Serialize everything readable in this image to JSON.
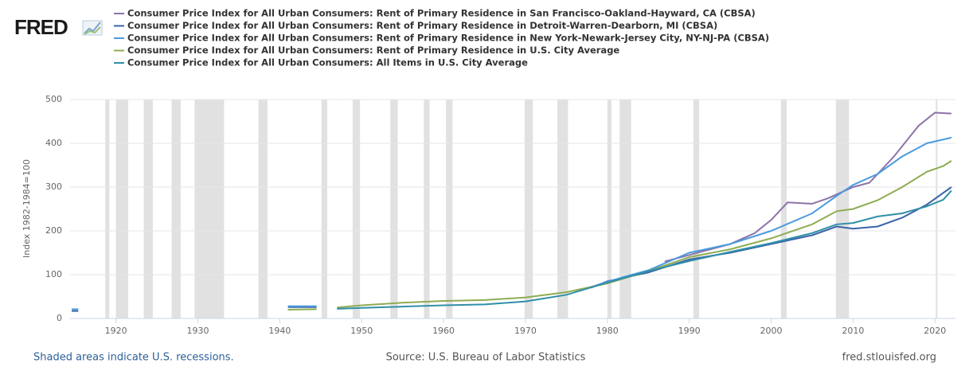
{
  "chart_data": {
    "type": "line",
    "logo": "FRED",
    "y_label": "Index 1982-1984=100",
    "note": "Shaded areas indicate U.S. recessions.",
    "source": "Source: U.S. Bureau of Labor Statistics",
    "site": "fred.stlouisfed.org",
    "xlim": [
      1914.4,
      2022.5
    ],
    "xticks": [
      1920,
      1930,
      1940,
      1950,
      1960,
      1970,
      1980,
      1990,
      2000,
      2010,
      2020
    ],
    "ylim": [
      0,
      500
    ],
    "yticks": [
      0,
      100,
      200,
      300,
      400,
      500
    ],
    "grid": true,
    "recession_color": "#e1e1e1",
    "recessions": [
      [
        1918.7,
        1919.2
      ],
      [
        1920.0,
        1921.5
      ],
      [
        1923.4,
        1924.5
      ],
      [
        1926.8,
        1927.9
      ],
      [
        1929.6,
        1933.2
      ],
      [
        1937.4,
        1938.5
      ],
      [
        1945.1,
        1945.8
      ],
      [
        1948.9,
        1949.8
      ],
      [
        1953.5,
        1954.4
      ],
      [
        1957.6,
        1958.3
      ],
      [
        1960.3,
        1961.1
      ],
      [
        1969.9,
        1970.9
      ],
      [
        1973.9,
        1975.2
      ],
      [
        1980.0,
        1980.5
      ],
      [
        1981.5,
        1982.9
      ],
      [
        1990.5,
        1991.2
      ],
      [
        2001.2,
        2001.9
      ],
      [
        2007.9,
        2009.5
      ],
      [
        2020.1,
        2020.3
      ]
    ],
    "series": [
      {
        "name": "Consumer Price Index for All Urban Consumers: Rent of Primary Residence in San Francisco-Oakland-Hayward, CA (CBSA)",
        "color": "#8c72a8",
        "x": [
          1987,
          1990,
          1995,
          1998,
          2000,
          2002,
          2005,
          2007,
          2010,
          2012,
          2015,
          2018,
          2020,
          2022
        ],
        "values": [
          130,
          145,
          170,
          195,
          225,
          265,
          262,
          275,
          300,
          310,
          370,
          440,
          470,
          468
        ]
      },
      {
        "name": "Consumer Price Index for All Urban Consumers: Rent of Primary Residence in Detroit-Warren-Dearborn, MI (CBSA)",
        "color": "#3a64a8",
        "x": [
          1914.6,
          1915.4,
          1916,
          1941,
          1944.5,
          1945,
          1978,
          1980,
          1985,
          1990,
          1995,
          2000,
          2005,
          2008,
          2010,
          2013,
          2016,
          2019,
          2022
        ],
        "values": [
          17,
          17,
          null,
          26,
          26,
          null,
          70,
          85,
          105,
          135,
          150,
          170,
          190,
          210,
          205,
          210,
          230,
          260,
          300
        ]
      },
      {
        "name": "Consumer Price Index for All Urban Consumers: Rent of Primary Residence in New York-Newark-Jersey City, NY-NJ-PA (CBSA)",
        "color": "#4c9bdf",
        "x": [
          1914.6,
          1915.4,
          1916,
          1941,
          1944.5,
          1945,
          1978,
          1982,
          1985,
          1990,
          1995,
          2000,
          2005,
          2008,
          2010,
          2013,
          2016,
          2019,
          2022
        ],
        "values": [
          21,
          21,
          null,
          28,
          28,
          null,
          72,
          95,
          110,
          150,
          170,
          200,
          240,
          280,
          305,
          330,
          370,
          400,
          413
        ]
      },
      {
        "name": "Consumer Price Index for All Urban Consumers: Rent of Primary Residence in U.S. City Average",
        "color": "#8fac52",
        "x": [
          1941,
          1944.5,
          1945,
          1947,
          1950,
          1955,
          1960,
          1965,
          1970,
          1975,
          1980,
          1985,
          1990,
          1995,
          2000,
          2005,
          2008,
          2010,
          2013,
          2016,
          2019,
          2021,
          2022
        ],
        "values": [
          20,
          21,
          null,
          25,
          30,
          36,
          40,
          42,
          48,
          60,
          80,
          108,
          140,
          158,
          183,
          215,
          245,
          250,
          270,
          300,
          335,
          348,
          360
        ]
      },
      {
        "name": "Consumer Price Index for All Urban Consumers: All Items in U.S. City Average",
        "color": "#2f8fa8",
        "x": [
          1947,
          1950,
          1955,
          1960,
          1965,
          1970,
          1975,
          1980,
          1985,
          1990,
          1995,
          2000,
          2005,
          2008,
          2010,
          2013,
          2016,
          2019,
          2021,
          2022
        ],
        "values": [
          22,
          24,
          27,
          30,
          32,
          39,
          54,
          82,
          108,
          131,
          152,
          172,
          195,
          215,
          218,
          233,
          240,
          256,
          271,
          292
        ]
      }
    ]
  }
}
